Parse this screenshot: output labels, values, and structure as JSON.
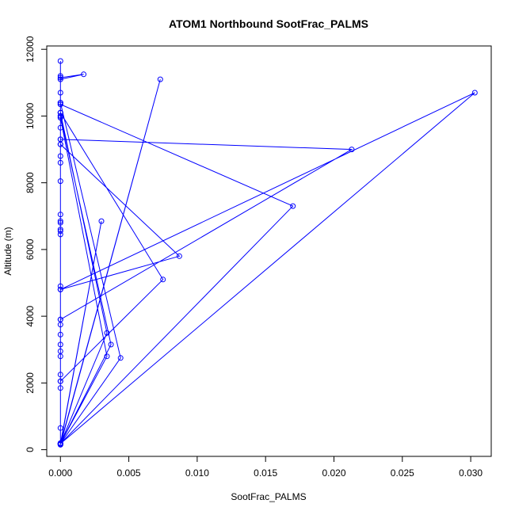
{
  "chart_data": {
    "type": "scatter",
    "title": "ATOM1 Northbound SootFrac_PALMS",
    "xlabel": "SootFrac_PALMS",
    "ylabel": "Altitude (m)",
    "xlim": [
      -0.001,
      0.0315
    ],
    "ylim": [
      -200,
      12100
    ],
    "x_ticks": [
      0.0,
      0.005,
      0.01,
      0.015,
      0.02,
      0.025,
      0.03
    ],
    "x_tick_labels": [
      "0.000",
      "0.005",
      "0.010",
      "0.015",
      "0.020",
      "0.025",
      "0.030"
    ],
    "y_ticks": [
      0,
      2000,
      4000,
      6000,
      8000,
      10000,
      12000
    ],
    "y_tick_labels": [
      "0",
      "2000",
      "4000",
      "6000",
      "8000",
      "10000",
      "12000"
    ],
    "grid": false,
    "legend": "none",
    "series": [
      {
        "color": "#0000ff",
        "marker": "open-circle",
        "line": true,
        "points": [
          [
            0.0,
            11650
          ],
          [
            0.0,
            11200
          ],
          [
            0.0,
            11100
          ],
          [
            0.0017,
            11250
          ],
          [
            0.0,
            11150
          ],
          [
            0.0,
            10700
          ],
          [
            0.0,
            10400
          ],
          [
            0.0,
            10350
          ],
          [
            0.0,
            10100
          ],
          [
            0.0,
            10000
          ],
          [
            0.0,
            9950
          ],
          [
            0.0,
            9650
          ],
          [
            0.0,
            9300
          ],
          [
            0.0,
            9150
          ],
          [
            0.0,
            8800
          ],
          [
            0.0,
            8600
          ],
          [
            0.0,
            8050
          ],
          [
            0.0,
            7050
          ],
          [
            0.0,
            6850
          ],
          [
            0.0,
            6800
          ],
          [
            0.0,
            6600
          ],
          [
            0.0,
            6550
          ],
          [
            0.0,
            6450
          ],
          [
            0.0,
            4900
          ],
          [
            0.0,
            4800
          ],
          [
            0.0,
            3900
          ],
          [
            0.0,
            3750
          ],
          [
            0.0,
            3450
          ],
          [
            0.0,
            3150
          ],
          [
            0.0,
            2950
          ],
          [
            0.0,
            2800
          ],
          [
            0.0,
            2250
          ],
          [
            0.0,
            2050
          ],
          [
            0.0,
            1850
          ],
          [
            0.0,
            650
          ],
          [
            0.0,
            200
          ],
          [
            0.0,
            180
          ],
          [
            0.0,
            150
          ],
          [
            0.003,
            6850
          ],
          [
            0.0,
            180
          ],
          [
            0.0073,
            11100
          ],
          [
            0.0,
            150
          ],
          [
            0.0,
            10100
          ],
          [
            0.0034,
            3500
          ],
          [
            0.0,
            180
          ],
          [
            0.0,
            10000
          ],
          [
            0.0037,
            3150
          ],
          [
            0.0,
            180
          ],
          [
            0.0,
            9950
          ],
          [
            0.0034,
            2800
          ],
          [
            0.0,
            180
          ],
          [
            0.0,
            10400
          ],
          [
            0.0044,
            2750
          ],
          [
            0.0,
            180
          ],
          [
            0.0,
            9300
          ],
          [
            0.0213,
            9000
          ],
          [
            0.0,
            3900
          ],
          [
            0.0,
            10350
          ],
          [
            0.017,
            7300
          ],
          [
            0.0,
            180
          ],
          [
            0.0,
            10100
          ],
          [
            0.0075,
            5100
          ],
          [
            0.0,
            2050
          ],
          [
            0.0,
            9150
          ],
          [
            0.0087,
            5800
          ],
          [
            0.0,
            4800
          ],
          [
            0.0303,
            10700
          ],
          [
            0.0,
            180
          ]
        ]
      }
    ]
  }
}
